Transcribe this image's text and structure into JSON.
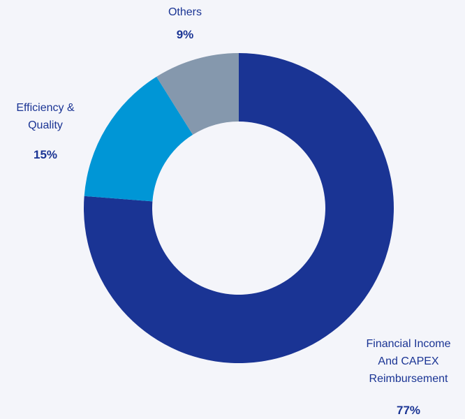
{
  "chart_data": {
    "type": "pie",
    "categories": [
      "Financial Income And CAPEX Reimbursement",
      "Efficiency & Quality",
      "Others"
    ],
    "values": [
      77,
      15,
      9
    ],
    "value_labels": [
      "77%",
      "15%",
      "9%"
    ],
    "colors": [
      "#1a3494",
      "#0096d6",
      "#8598ad"
    ],
    "donut": true
  }
}
